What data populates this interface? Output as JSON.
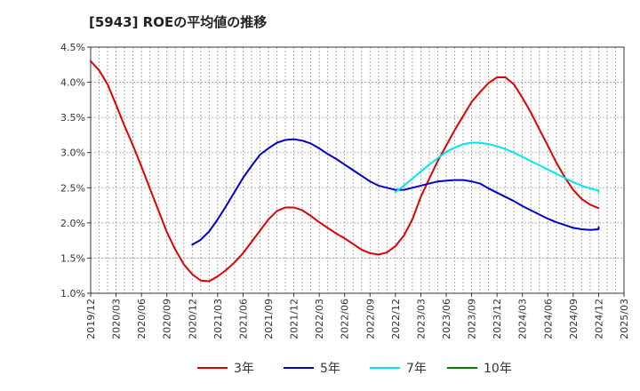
{
  "chart_data": {
    "type": "line",
    "title": "[5943]  ROEの平均値の推移",
    "xlabel": "",
    "ylabel": "",
    "x": [
      "2019/12",
      "2020/03",
      "2020/06",
      "2020/09",
      "2020/12",
      "2021/03",
      "2021/06",
      "2021/09",
      "2021/12",
      "2022/03",
      "2022/06",
      "2022/09",
      "2022/12",
      "2023/03",
      "2023/06",
      "2023/09",
      "2023/12",
      "2024/03",
      "2024/06",
      "2024/09",
      "2024/12",
      "2025/03"
    ],
    "y_ticks": [
      "1.0%",
      "1.5%",
      "2.0%",
      "2.5%",
      "3.0%",
      "3.5%",
      "4.0%",
      "4.5%"
    ],
    "ylim": [
      1.0,
      4.5
    ],
    "grid": true,
    "legend_position": "bottom",
    "series": [
      {
        "name": "3年",
        "color": "#e00000",
        "points": [
          [
            0,
            4.3
          ],
          [
            0.333,
            4.17
          ],
          [
            0.667,
            3.97
          ],
          [
            1,
            3.68
          ],
          [
            1.333,
            3.38
          ],
          [
            1.667,
            3.1
          ],
          [
            2,
            2.8
          ],
          [
            2.333,
            2.49
          ],
          [
            2.667,
            2.18
          ],
          [
            3,
            1.87
          ],
          [
            3.333,
            1.62
          ],
          [
            3.667,
            1.41
          ],
          [
            4,
            1.27
          ],
          [
            4.333,
            1.18
          ],
          [
            4.667,
            1.17
          ],
          [
            5,
            1.24
          ],
          [
            5.333,
            1.33
          ],
          [
            5.667,
            1.44
          ],
          [
            6,
            1.57
          ],
          [
            6.333,
            1.73
          ],
          [
            6.667,
            1.89
          ],
          [
            7,
            2.05
          ],
          [
            7.333,
            2.17
          ],
          [
            7.667,
            2.22
          ],
          [
            8,
            2.22
          ],
          [
            8.333,
            2.18
          ],
          [
            8.667,
            2.1
          ],
          [
            9,
            2.01
          ],
          [
            9.333,
            1.93
          ],
          [
            9.667,
            1.85
          ],
          [
            10,
            1.78
          ],
          [
            10.333,
            1.7
          ],
          [
            10.667,
            1.62
          ],
          [
            11,
            1.57
          ],
          [
            11.333,
            1.55
          ],
          [
            11.667,
            1.58
          ],
          [
            12,
            1.67
          ],
          [
            12.333,
            1.82
          ],
          [
            12.667,
            2.05
          ],
          [
            13,
            2.37
          ],
          [
            13.333,
            2.63
          ],
          [
            13.667,
            2.88
          ],
          [
            14,
            3.1
          ],
          [
            14.333,
            3.32
          ],
          [
            14.667,
            3.52
          ],
          [
            15,
            3.72
          ],
          [
            15.333,
            3.86
          ],
          [
            15.667,
            3.99
          ],
          [
            16,
            4.07
          ],
          [
            16.333,
            4.07
          ],
          [
            16.667,
            3.97
          ],
          [
            17,
            3.78
          ],
          [
            17.333,
            3.57
          ],
          [
            17.667,
            3.33
          ],
          [
            18,
            3.1
          ],
          [
            18.333,
            2.86
          ],
          [
            18.667,
            2.65
          ],
          [
            19,
            2.47
          ],
          [
            19.333,
            2.34
          ],
          [
            19.667,
            2.26
          ],
          [
            20,
            2.21
          ]
        ]
      },
      {
        "name": "5年",
        "color": "#0000cc",
        "points": [
          [
            4,
            1.69
          ],
          [
            4.333,
            1.76
          ],
          [
            4.667,
            1.88
          ],
          [
            5,
            2.05
          ],
          [
            5.333,
            2.24
          ],
          [
            5.667,
            2.44
          ],
          [
            6,
            2.64
          ],
          [
            6.333,
            2.81
          ],
          [
            6.667,
            2.97
          ],
          [
            7,
            3.06
          ],
          [
            7.333,
            3.14
          ],
          [
            7.667,
            3.18
          ],
          [
            8,
            3.19
          ],
          [
            8.333,
            3.17
          ],
          [
            8.667,
            3.13
          ],
          [
            9,
            3.06
          ],
          [
            9.333,
            2.98
          ],
          [
            9.667,
            2.91
          ],
          [
            10,
            2.83
          ],
          [
            10.333,
            2.75
          ],
          [
            10.667,
            2.67
          ],
          [
            11,
            2.59
          ],
          [
            11.333,
            2.53
          ],
          [
            11.667,
            2.5
          ],
          [
            12,
            2.47
          ],
          [
            12.333,
            2.47
          ],
          [
            12.667,
            2.5
          ],
          [
            13,
            2.53
          ],
          [
            13.333,
            2.56
          ],
          [
            13.667,
            2.59
          ],
          [
            14,
            2.6
          ],
          [
            14.333,
            2.61
          ],
          [
            14.667,
            2.61
          ],
          [
            15,
            2.59
          ],
          [
            15.333,
            2.56
          ],
          [
            15.667,
            2.49
          ],
          [
            16,
            2.43
          ],
          [
            16.333,
            2.37
          ],
          [
            16.667,
            2.31
          ],
          [
            17,
            2.24
          ],
          [
            17.333,
            2.18
          ],
          [
            17.667,
            2.12
          ],
          [
            18,
            2.06
          ],
          [
            18.333,
            2.01
          ],
          [
            18.667,
            1.97
          ],
          [
            19,
            1.93
          ],
          [
            19.333,
            1.91
          ],
          [
            19.667,
            1.9
          ],
          [
            20,
            1.91
          ],
          [
            20,
            1.94
          ]
        ]
      },
      {
        "name": "7年",
        "color": "#00e5ee",
        "points": [
          [
            12,
            2.44
          ],
          [
            12.333,
            2.53
          ],
          [
            12.667,
            2.63
          ],
          [
            13,
            2.73
          ],
          [
            13.333,
            2.83
          ],
          [
            13.667,
            2.92
          ],
          [
            14,
            3.01
          ],
          [
            14.333,
            3.07
          ],
          [
            14.667,
            3.12
          ],
          [
            15,
            3.14
          ],
          [
            15.333,
            3.14
          ],
          [
            15.667,
            3.12
          ],
          [
            16,
            3.09
          ],
          [
            16.333,
            3.05
          ],
          [
            16.667,
            3.0
          ],
          [
            17,
            2.94
          ],
          [
            17.333,
            2.88
          ],
          [
            17.667,
            2.82
          ],
          [
            18,
            2.76
          ],
          [
            18.333,
            2.7
          ],
          [
            18.667,
            2.64
          ],
          [
            19,
            2.58
          ],
          [
            19.333,
            2.53
          ],
          [
            19.667,
            2.49
          ],
          [
            20,
            2.46
          ],
          [
            20,
            2.44
          ]
        ]
      },
      {
        "name": "10年",
        "color": "#008000",
        "points": []
      }
    ]
  }
}
